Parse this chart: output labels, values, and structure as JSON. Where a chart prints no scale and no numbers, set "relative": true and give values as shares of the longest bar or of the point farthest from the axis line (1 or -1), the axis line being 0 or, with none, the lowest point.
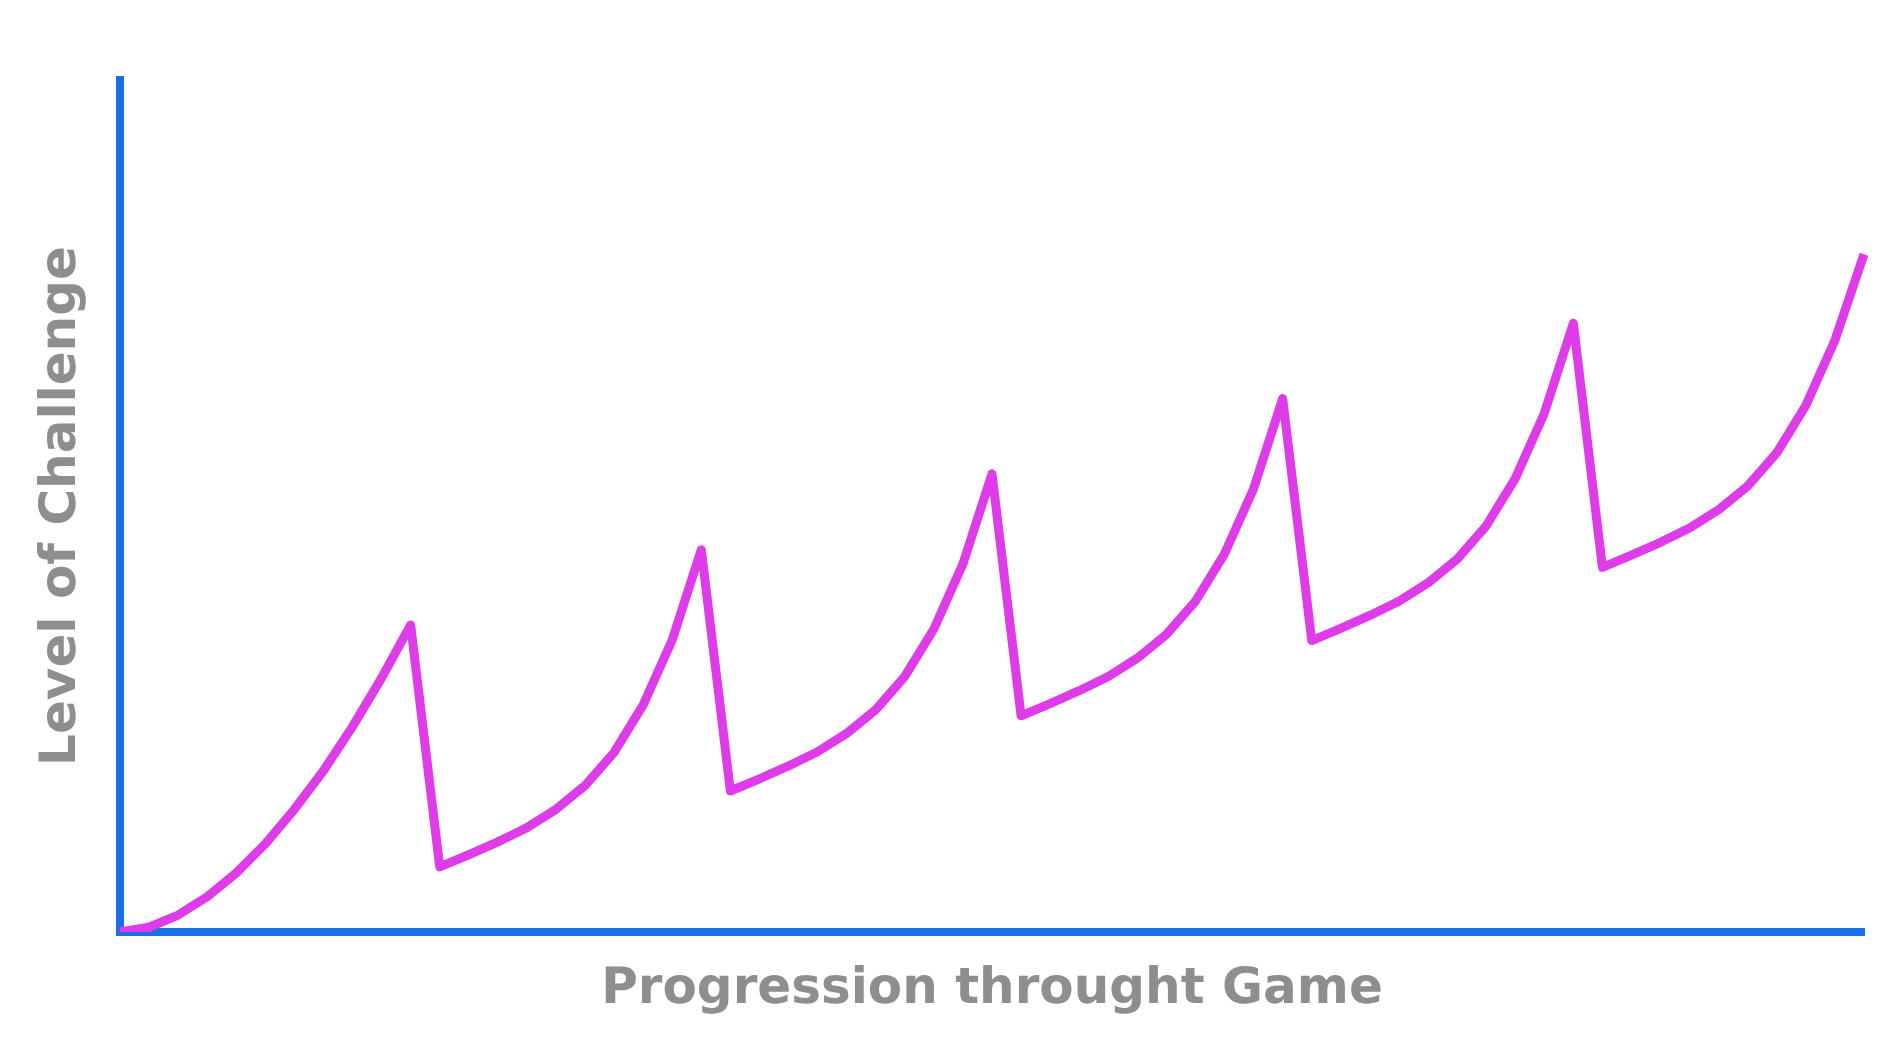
{
  "chart_data": {
    "type": "line",
    "xlabel": "Progression throught Game",
    "ylabel": "Level of Challenge",
    "relative": true,
    "marker": "none",
    "categories": [
      null,
      null,
      null,
      null,
      null,
      null,
      null,
      null,
      null,
      null,
      null,
      null,
      null,
      null,
      null,
      null,
      null,
      null,
      null,
      null,
      null,
      null,
      null,
      null,
      null,
      null,
      null,
      null,
      null,
      null,
      null,
      null,
      null,
      null,
      null,
      null,
      null,
      null,
      null,
      null,
      null,
      null,
      null,
      null,
      null,
      null,
      null,
      null,
      null,
      null,
      null,
      null,
      null,
      null,
      null,
      null,
      null,
      null,
      null,
      null,
      null
    ],
    "series": [
      {
        "color": "#dd3ce8",
        "values": [
          0,
          0.007,
          0.025,
          0.052,
          0.087,
          0.13,
          0.181,
          0.238,
          0.303,
          0.375,
          0.453,
          0.096,
          0.114,
          0.133,
          0.154,
          0.181,
          0.216,
          0.265,
          0.335,
          0.431,
          0.564,
          0.208,
          0.226,
          0.245,
          0.266,
          0.293,
          0.328,
          0.377,
          0.447,
          0.543,
          0.676,
          0.319,
          0.337,
          0.356,
          0.377,
          0.404,
          0.439,
          0.488,
          0.558,
          0.654,
          0.787,
          0.43,
          0.448,
          0.467,
          0.488,
          0.515,
          0.55,
          0.599,
          0.669,
          0.765,
          0.898,
          0.538,
          0.556,
          0.575,
          0.596,
          0.623,
          0.658,
          0.707,
          0.777,
          0.873,
          1.0
        ]
      }
    ]
  }
}
